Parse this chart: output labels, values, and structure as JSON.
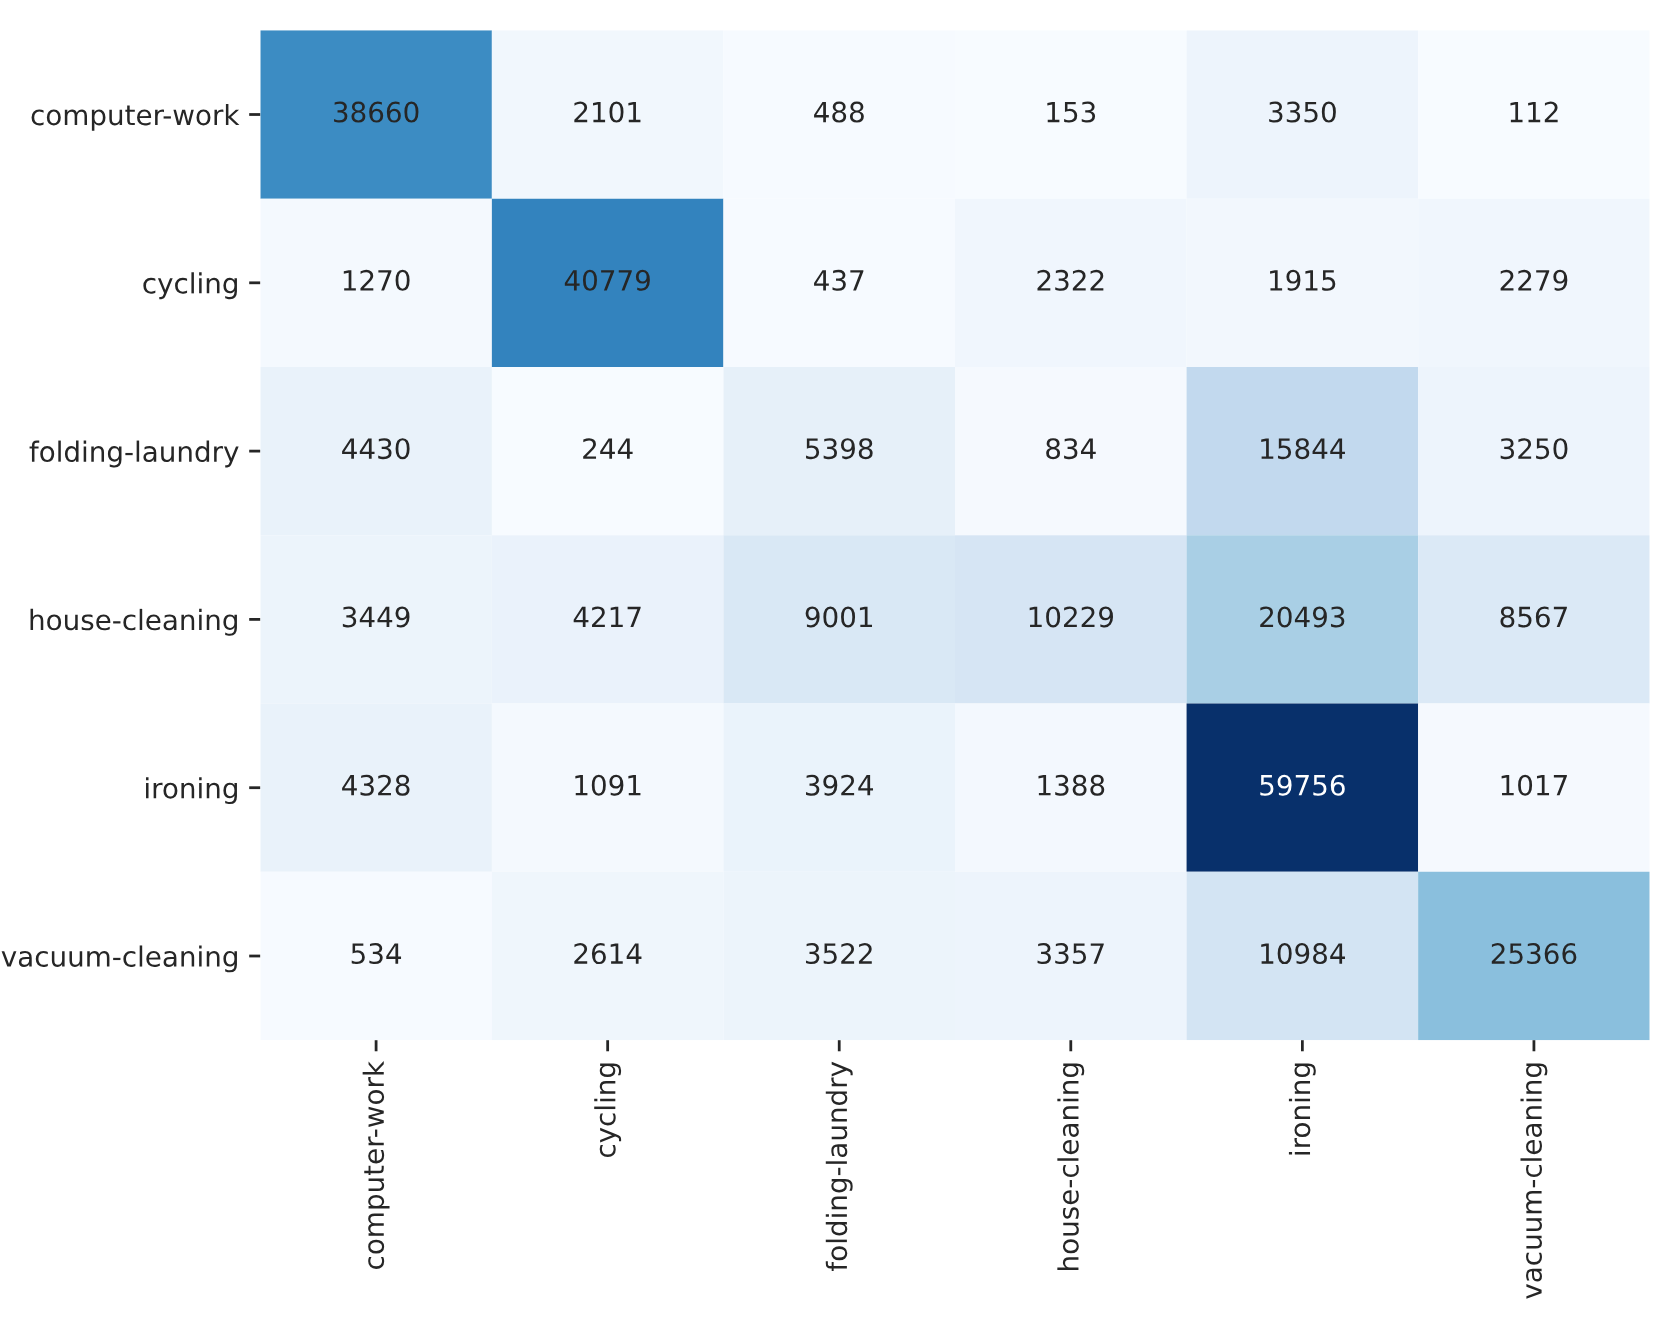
{
  "chart_data": {
    "type": "heatmap",
    "categories": [
      "computer-work",
      "cycling",
      "folding-laundry",
      "house-cleaning",
      "ironing",
      "vacuum-cleaning"
    ],
    "y_categories": [
      "computer-work",
      "cycling",
      "folding-laundry",
      "house-cleaning",
      "ironing",
      "vacuum-cleaning"
    ],
    "cells": [
      [
        38660,
        2101,
        488,
        153,
        3350,
        112
      ],
      [
        1270,
        40779,
        437,
        2322,
        1915,
        2279
      ],
      [
        4430,
        244,
        5398,
        834,
        15844,
        3250
      ],
      [
        3449,
        4217,
        9001,
        10229,
        20493,
        8567
      ],
      [
        4328,
        1091,
        3924,
        1388,
        59756,
        1017
      ],
      [
        534,
        2614,
        3522,
        3357,
        10984,
        25366
      ]
    ],
    "data_labels": true
  }
}
